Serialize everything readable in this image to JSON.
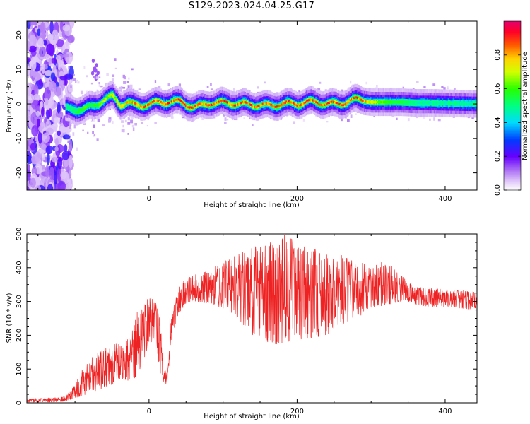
{
  "title": "S129.2023.024.04.25.G17",
  "chart_data": [
    {
      "type": "heatmap",
      "xlabel": "Height of straight line (km)",
      "ylabel": "Frequency (Hz)",
      "xlim": [
        -165,
        443
      ],
      "ylim": [
        -25,
        24
      ],
      "x_ticks": [
        0,
        200,
        400
      ],
      "y_ticks": [
        -20,
        -10,
        0,
        10,
        20
      ],
      "colorbar": {
        "label": "Normalized spectral amplitude",
        "range": [
          0,
          1
        ],
        "ticks": [
          0.0,
          0.2,
          0.4,
          0.6,
          0.8
        ],
        "tick_labels": [
          "0.0",
          "0.2",
          "0.4",
          "0.6",
          "0.8"
        ]
      },
      "ridge": {
        "x": [
          -110,
          -90,
          -75,
          -60,
          -50,
          -40,
          -30,
          -20,
          0,
          20,
          40,
          60,
          80,
          100,
          120,
          140,
          160,
          180,
          200,
          220,
          240,
          260,
          280,
          300,
          320,
          340,
          360,
          380,
          400,
          420,
          443
        ],
        "frequency_hz": [
          -1,
          -1.5,
          -1,
          1,
          2,
          0,
          1,
          0,
          0,
          0,
          0.5,
          -0.5,
          0.5,
          0,
          -0.5,
          0,
          0,
          0,
          -0.5,
          0.5,
          0.5,
          0.5,
          1,
          0.5,
          0.5,
          0.5,
          0.3,
          0.3,
          0.2,
          0.1,
          0
        ],
        "peak_amplitude": [
          0.5,
          0.6,
          0.6,
          0.7,
          0.7,
          0.75,
          0.8,
          0.85,
          0.9,
          0.9,
          0.9,
          0.9,
          0.9,
          0.9,
          0.9,
          0.9,
          0.9,
          0.9,
          0.9,
          0.9,
          0.9,
          0.9,
          0.9,
          0.75,
          0.6,
          0.55,
          0.5,
          0.5,
          0.5,
          0.5,
          0.5
        ]
      },
      "noise_region_x": [
        -165,
        -113
      ]
    },
    {
      "type": "line",
      "xlabel": "Height of straight line (km)",
      "ylabel": "SNR (10 * v/v)",
      "xlim": [
        -165,
        443
      ],
      "ylim": [
        0,
        500
      ],
      "x_ticks": [
        0,
        200,
        400
      ],
      "y_ticks": [
        0,
        100,
        200,
        300,
        400,
        500
      ],
      "color": "#ee2222",
      "x": [
        -165,
        -140,
        -120,
        -110,
        -100,
        -90,
        -80,
        -70,
        -60,
        -50,
        -40,
        -30,
        -20,
        -10,
        0,
        10,
        15,
        20,
        25,
        30,
        35,
        40,
        45,
        50,
        60,
        80,
        100,
        120,
        140,
        160,
        180,
        200,
        220,
        240,
        260,
        280,
        300,
        320,
        330,
        340,
        350,
        360,
        380,
        400,
        420,
        443
      ],
      "envelope_low": [
        2,
        2,
        3,
        5,
        15,
        20,
        30,
        35,
        45,
        55,
        60,
        65,
        70,
        100,
        180,
        170,
        80,
        60,
        50,
        180,
        230,
        260,
        280,
        290,
        300,
        295,
        280,
        250,
        200,
        180,
        170,
        185,
        190,
        200,
        230,
        250,
        280,
        290,
        295,
        300,
        300,
        290,
        285,
        285,
        280,
        275
      ],
      "envelope_high": [
        12,
        14,
        16,
        25,
        55,
        100,
        130,
        150,
        160,
        170,
        180,
        190,
        250,
        300,
        320,
        300,
        250,
        100,
        90,
        250,
        300,
        340,
        355,
        370,
        380,
        390,
        420,
        440,
        460,
        480,
        500,
        480,
        460,
        450,
        440,
        420,
        410,
        420,
        400,
        380,
        360,
        345,
        340,
        335,
        335,
        330
      ]
    }
  ]
}
